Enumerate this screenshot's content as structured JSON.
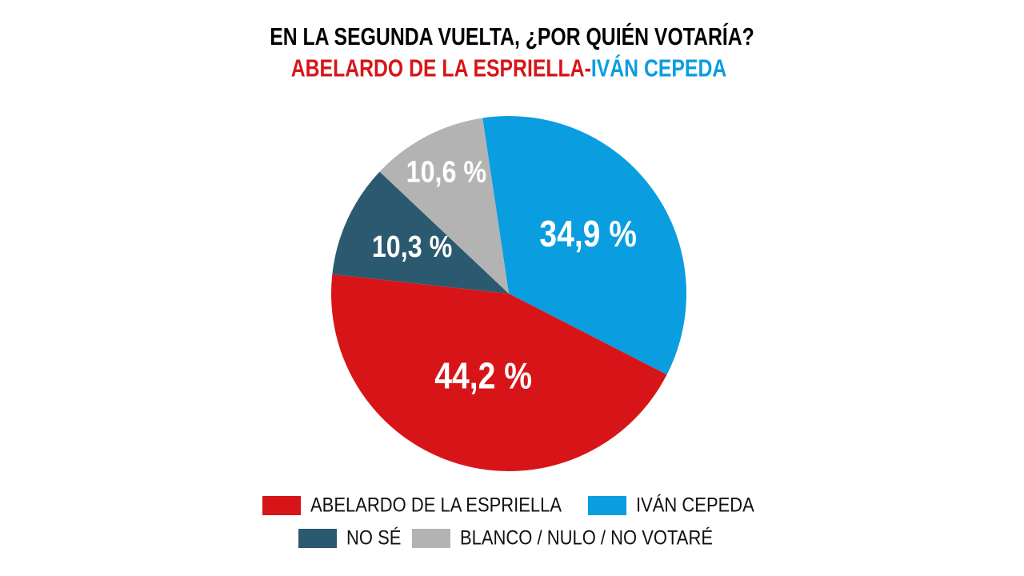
{
  "chart_data": {
    "type": "pie",
    "title": "EN LA SEGUNDA VUELTA, ¿POR QUIÉN VOTARÍA?",
    "subtitle_parts": [
      {
        "text": "ABELARDO DE LA ESPRIELLA-",
        "color": "#d71518"
      },
      {
        "text": "IVÁN CEPEDA",
        "color": "#0a9de0"
      }
    ],
    "categories": [
      "IVÁN CEPEDA",
      "ABELARDO DE LA ESPRIELLA",
      "NO SÉ",
      "BLANCO / NULO / NO VOTARÉ"
    ],
    "values": [
      34.9,
      44.2,
      10.3,
      10.6
    ],
    "value_labels": [
      "34,9 %",
      "44,2 %",
      "10,3 %",
      "10,6 %"
    ],
    "colors": [
      "#0a9de0",
      "#d71518",
      "#2b5a70",
      "#b3b3b3"
    ]
  }
}
